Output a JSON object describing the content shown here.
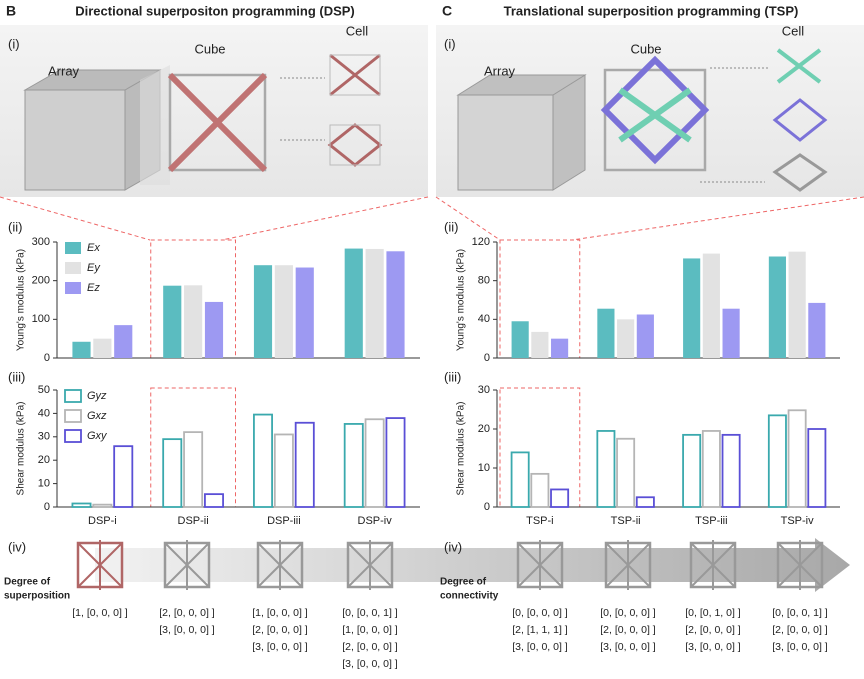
{
  "panels": [
    {
      "letter": "B",
      "title": "Directional superpositon programming (DSP)",
      "roman": [
        "(i)",
        "(ii)",
        "(iii)",
        "(iv)"
      ],
      "array": "Array",
      "cube": "Cube",
      "cell": "Cell",
      "degree": [
        "Degree of",
        "superposition"
      ],
      "codes": [
        [
          "[1, [0, 0, 0] ]"
        ],
        [
          "[2, [0, 0, 0] ]",
          "[3, [0, 0, 0] ]"
        ],
        [
          "[1, [0, 0, 0] ]",
          "[2, [0, 0, 0] ]",
          "[3, [0, 0, 0] ]"
        ],
        [
          "[0, [0, 0, 1] ]",
          "[1, [0, 0, 0] ]",
          "[2, [0, 0, 0] ]",
          "[3, [0, 0, 0] ]"
        ]
      ]
    },
    {
      "letter": "C",
      "title": "Translational superposition programming (TSP)",
      "roman": [
        "(i)",
        "(ii)",
        "(iii)",
        "(iv)"
      ],
      "array": "Array",
      "cube": "Cube",
      "cell": "Cell",
      "degree": [
        "Degree of",
        "connectivity"
      ],
      "codes": [
        [
          "[0, [0, 0, 0] ]",
          "[2, [1, 1, 1] ]",
          "[3, [0, 0, 0] ]"
        ],
        [
          "[0, [0, 0, 0] ]",
          "[2, [0, 0, 0] ]",
          "[3, [0, 0, 0] ]"
        ],
        [
          "[0, [0, 1, 0] ]",
          "[2, [0, 0, 0] ]",
          "[3, [0, 0, 0] ]"
        ],
        [
          "[0, [0, 0, 1] ]",
          "[2, [0, 0, 0] ]",
          "[3, [0, 0, 0] ]"
        ]
      ]
    }
  ],
  "chart_data": [
    {
      "type": "bar",
      "y_label": "Young's modulus (kPa)",
      "ylim": [
        0,
        300
      ],
      "yticks": [
        0,
        100,
        200,
        300
      ],
      "legend": "upper left",
      "style": "filled",
      "series": [
        {
          "name": "Ex",
          "color": "#5bbcc0",
          "values": [
            42,
            187,
            240,
            283
          ]
        },
        {
          "name": "Ey",
          "color": "#e2e2e2",
          "values": [
            50,
            188,
            240,
            282
          ]
        },
        {
          "name": "Ez",
          "color": "#9d99f2",
          "values": [
            85,
            145,
            234,
            276
          ]
        }
      ]
    },
    {
      "type": "bar",
      "y_label": "Shear modulus (kPa)",
      "ylim": [
        0,
        50
      ],
      "yticks": [
        0,
        10,
        20,
        30,
        40,
        50
      ],
      "legend": "upper left",
      "style": "outline",
      "categories": [
        "DSP-i",
        "DSP-ii",
        "DSP-iii",
        "DSP-iv"
      ],
      "series": [
        {
          "name": "Gyz",
          "color": "#3aa9ad",
          "values": [
            1.5,
            29,
            39.5,
            35.5
          ]
        },
        {
          "name": "Gxz",
          "color": "#b5b5b5",
          "values": [
            1,
            32,
            31,
            37.5
          ]
        },
        {
          "name": "Gxy",
          "color": "#5a4fd6",
          "values": [
            26,
            5.5,
            36,
            38
          ]
        }
      ]
    },
    {
      "type": "bar",
      "y_label": "Young's modulus (kPa)",
      "ylim": [
        0,
        120
      ],
      "yticks": [
        0,
        40,
        80,
        120
      ],
      "style": "filled",
      "series": [
        {
          "color": "#5bbcc0",
          "values": [
            38,
            51,
            103,
            105
          ]
        },
        {
          "color": "#e2e2e2",
          "values": [
            27,
            40,
            108,
            110
          ]
        },
        {
          "color": "#9d99f2",
          "values": [
            20,
            45,
            51,
            57
          ]
        }
      ]
    },
    {
      "type": "bar",
      "y_label": "Shear modulus (kPa)",
      "ylim": [
        0,
        30
      ],
      "yticks": [
        0,
        10,
        20,
        30
      ],
      "style": "outline",
      "categories": [
        "TSP-i",
        "TSP-ii",
        "TSP-iii",
        "TSP-iv"
      ],
      "series": [
        {
          "color": "#3aa9ad",
          "values": [
            14,
            19.5,
            18.5,
            23.5
          ]
        },
        {
          "color": "#b5b5b5",
          "values": [
            8.5,
            17.5,
            19.5,
            24.8
          ]
        },
        {
          "color": "#5a4fd6",
          "values": [
            4.5,
            2.5,
            18.5,
            20
          ]
        }
      ]
    }
  ]
}
